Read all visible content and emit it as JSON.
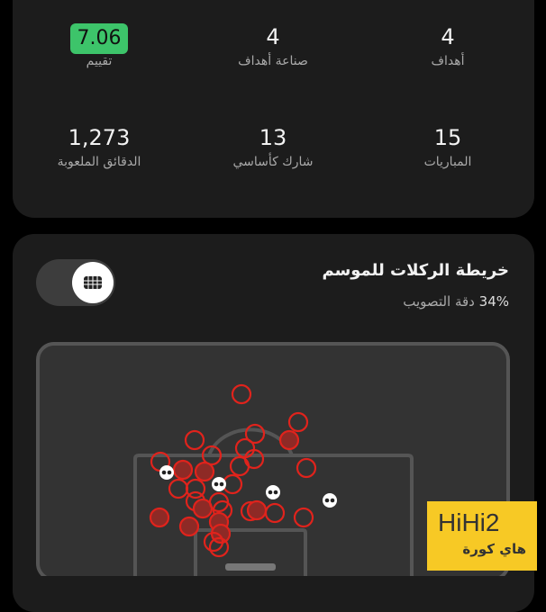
{
  "stats": {
    "rating": {
      "value": "7.06",
      "label": "تقييم",
      "color": "#3dc46a"
    },
    "assists": {
      "value": "4",
      "label": "صناعة أهداف"
    },
    "goals": {
      "value": "4",
      "label": "أهداف"
    },
    "minutes": {
      "value": "1,273",
      "label": "الدقائق الملعوبة"
    },
    "starts": {
      "value": "13",
      "label": "شارك كأساسي"
    },
    "matches": {
      "value": "15",
      "label": "المباريات"
    }
  },
  "shot_map": {
    "title": "خريطة الركلات للموسم",
    "accuracy_value": "34%",
    "accuracy_label": "دقة التصويب",
    "toggle_icon": "goal-net-icon",
    "shot_color": "#e0231c",
    "goal_icon": "football-icon"
  },
  "watermark": {
    "logo": "HiHi2",
    "text": "هاي كورة"
  }
}
